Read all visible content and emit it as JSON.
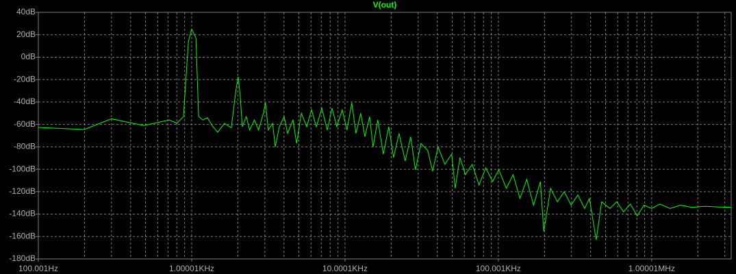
{
  "chart_data": {
    "type": "line",
    "title": "V(out)",
    "xscale": "log",
    "grid": true,
    "background": "#000000",
    "grid_color": "#808080",
    "xlim": [
      100.001,
      3300000
    ],
    "ylim": [
      -180,
      40
    ],
    "xticks": [
      {
        "value": 100.001,
        "label": "100.001Hz"
      },
      {
        "value": 1000.01,
        "label": "1.00001KHz"
      },
      {
        "value": 10000.1,
        "label": "10.0001KHz"
      },
      {
        "value": 100001,
        "label": "100.001KHz"
      },
      {
        "value": 1000010,
        "label": "1.00001MHz"
      }
    ],
    "xminorticks": [
      200,
      300,
      400,
      500,
      600,
      700,
      800,
      900,
      2000,
      3000,
      4000,
      5000,
      6000,
      7000,
      8000,
      9000,
      20000,
      30000,
      40000,
      50000,
      60000,
      70000,
      80000,
      90000,
      200000,
      300000,
      400000,
      500000,
      600000,
      700000,
      800000,
      900000,
      2000000,
      3000000
    ],
    "yticks": [
      {
        "value": 40,
        "label": "40dB"
      },
      {
        "value": 20,
        "label": "20dB"
      },
      {
        "value": 0,
        "label": "0dB"
      },
      {
        "value": -20,
        "label": "-20dB"
      },
      {
        "value": -40,
        "label": "-40dB"
      },
      {
        "value": -60,
        "label": "-60dB"
      },
      {
        "value": -80,
        "label": "-80dB"
      },
      {
        "value": -100,
        "label": "-100dB"
      },
      {
        "value": -120,
        "label": "-120dB"
      },
      {
        "value": -140,
        "label": "-140dB"
      },
      {
        "value": -160,
        "label": "-160dB"
      },
      {
        "value": -180,
        "label": "-180dB"
      }
    ],
    "x": [
      100,
      199,
      300,
      487,
      713,
      800,
      884,
      952,
      1000,
      1066,
      1110,
      1181,
      1266,
      1360,
      1478,
      1636,
      1812,
      1950,
      2010,
      2073,
      2137,
      2270,
      2388,
      2565,
      2730,
      2936,
      3030,
      3160,
      3370,
      3510,
      3730,
      4010,
      4220,
      4580,
      4830,
      5190,
      5630,
      6050,
      6500,
      7060,
      7660,
      8230,
      8840,
      9590,
      10300,
      11070,
      11780,
      12660,
      13480,
      14470,
      15230,
      16360,
      17770,
      19290,
      20730,
      22510,
      24690,
      26800,
      28800,
      31280,
      34670,
      37240,
      40430,
      44800,
      49630,
      52270,
      56150,
      60950,
      67510,
      74780,
      82830,
      91760,
      100700,
      112700,
      124800,
      138300,
      153200,
      169700,
      188000,
      197800,
      219000,
      242700,
      268800,
      297800,
      330000,
      365500,
      392400,
      434600,
      471800,
      534000,
      591600,
      655300,
      725900,
      804000,
      890600,
      1000000,
      1131000,
      1318000,
      1540000,
      1831000,
      2222000,
      2700000,
      3300000
    ],
    "series": [
      {
        "name": "V(out)",
        "color": "#00ff00",
        "values": [
          -62.7,
          -64.5,
          -55,
          -61,
          -56,
          -59,
          -53,
          14,
          25,
          17,
          -53,
          -56,
          -54,
          -61,
          -67,
          -59,
          -63,
          -28,
          -17.5,
          -34.5,
          -62,
          -53,
          -65,
          -56,
          -65,
          -50,
          -40.7,
          -65,
          -59,
          -80,
          -62,
          -53,
          -68,
          -56,
          -77,
          -50,
          -62,
          -47,
          -62,
          -45.5,
          -65,
          -45.5,
          -62,
          -47,
          -65,
          -40.7,
          -68,
          -50,
          -71,
          -53,
          -80,
          -56,
          -86.5,
          -62,
          -89.5,
          -68,
          -92.6,
          -71,
          -100.5,
          -77,
          -83.4,
          -101.8,
          -80,
          -95.6,
          -86.5,
          -117,
          -89.5,
          -104.8,
          -95.6,
          -114,
          -98.7,
          -111,
          -100.5,
          -117,
          -104.8,
          -126,
          -109,
          -132,
          -111,
          -155.6,
          -117,
          -129,
          -120,
          -132,
          -123,
          -135,
          -126,
          -163,
          -129,
          -135,
          -129,
          -138,
          -131,
          -141.5,
          -132,
          -135,
          -131,
          -135,
          -132,
          -134,
          -133,
          -133.6,
          -134
        ]
      }
    ]
  }
}
